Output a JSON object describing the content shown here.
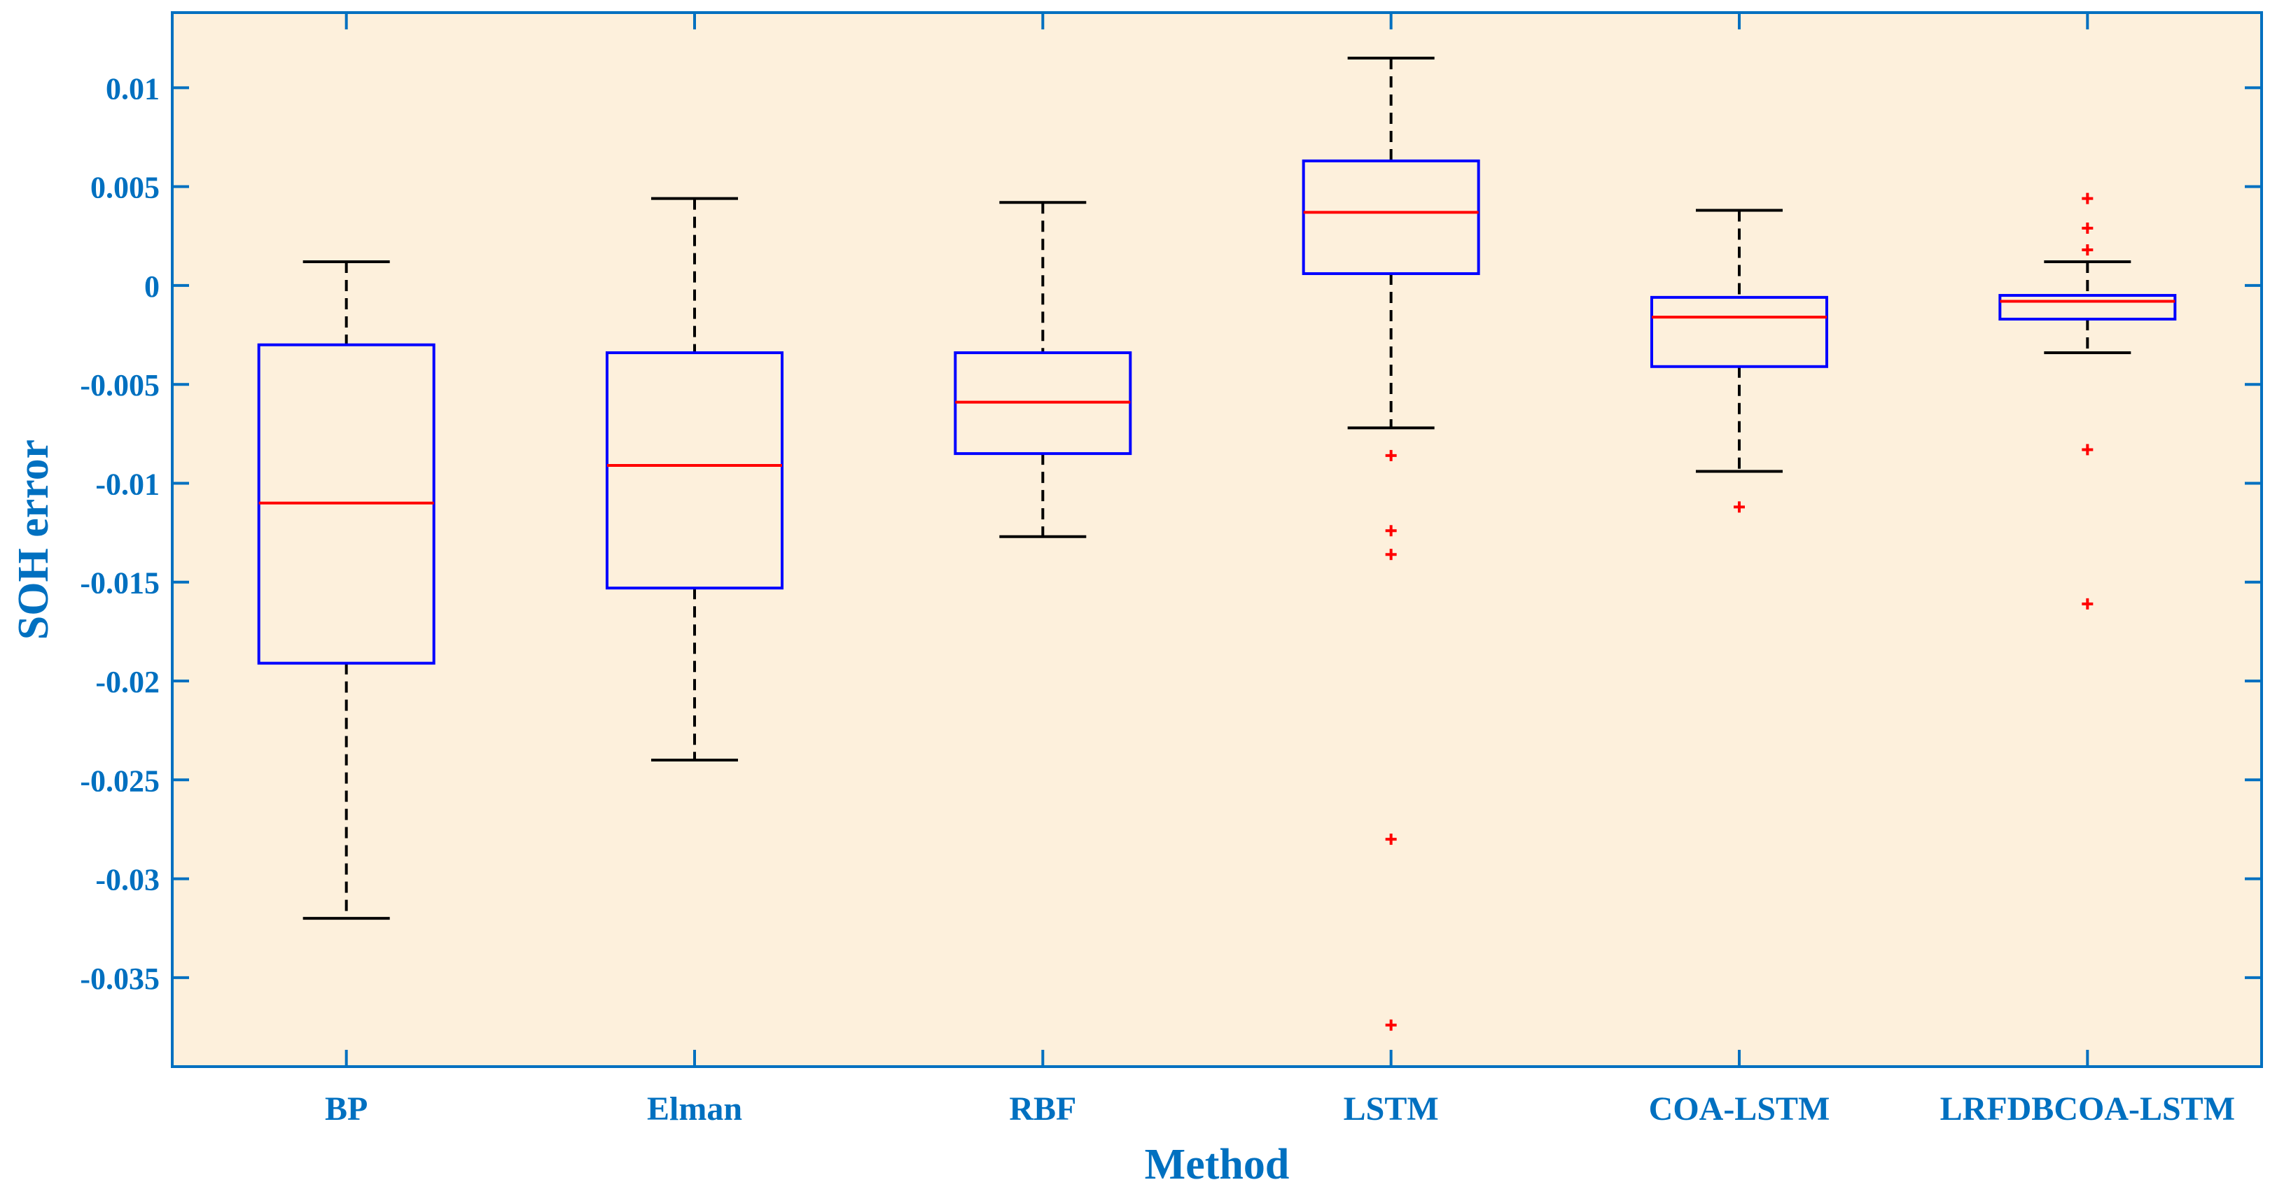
{
  "chart_data": {
    "type": "boxplot",
    "title": "",
    "xlabel": "Method",
    "ylabel": "SOH error",
    "ylim": [
      -0.0395,
      0.0138
    ],
    "yticks": [
      0.01,
      0.005,
      0,
      -0.005,
      -0.01,
      -0.015,
      -0.02,
      -0.025,
      -0.03,
      -0.035
    ],
    "ytick_labels": [
      "0.01",
      "0.005",
      "0",
      "-0.005",
      "-0.01",
      "-0.015",
      "-0.02",
      "-0.025",
      "-0.03",
      "-0.035"
    ],
    "grid": false,
    "legend": "none",
    "categories": [
      "BP",
      "Elman",
      "RBF",
      "LSTM",
      "COA-LSTM",
      "LRFDBCOA-LSTM"
    ],
    "boxes": [
      {
        "name": "BP",
        "whisker_low": -0.032,
        "q1": -0.0191,
        "median": -0.011,
        "q3": -0.003,
        "whisker_high": 0.0012,
        "outliers": []
      },
      {
        "name": "Elman",
        "whisker_low": -0.024,
        "q1": -0.0153,
        "median": -0.0091,
        "q3": -0.0034,
        "whisker_high": 0.0044,
        "outliers": []
      },
      {
        "name": "RBF",
        "whisker_low": -0.0127,
        "q1": -0.0085,
        "median": -0.0059,
        "q3": -0.0034,
        "whisker_high": 0.0042,
        "outliers": []
      },
      {
        "name": "LSTM",
        "whisker_low": -0.0072,
        "q1": 0.0006,
        "median": 0.0037,
        "q3": 0.0063,
        "whisker_high": 0.0115,
        "outliers": [
          -0.0086,
          -0.0124,
          -0.0136,
          -0.028,
          -0.0374
        ]
      },
      {
        "name": "COA-LSTM",
        "whisker_low": -0.0094,
        "q1": -0.0041,
        "median": -0.0016,
        "q3": -0.0006,
        "whisker_high": 0.0038,
        "outliers": [
          -0.0112
        ]
      },
      {
        "name": "LRFDBCOA-LSTM",
        "whisker_low": -0.0034,
        "q1": -0.0017,
        "median": -0.0008,
        "q3": -0.0005,
        "whisker_high": 0.0012,
        "outliers": [
          0.0044,
          0.0029,
          0.0018,
          -0.0083,
          -0.0161
        ]
      }
    ],
    "colors": {
      "plot_background": "#fdf0dc",
      "axes": "#0070c0",
      "box": "#0000ff",
      "median": "#ff0000",
      "whisker": "#000000",
      "outlier": "#ff0000",
      "labels": "#0070c0"
    }
  }
}
